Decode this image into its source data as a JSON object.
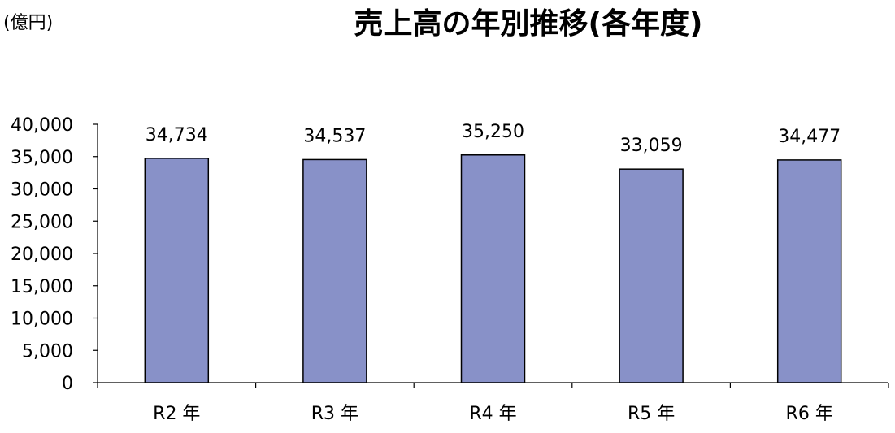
{
  "chart_data": {
    "type": "bar",
    "title": "売上高の年別推移(各年度)",
    "unit_label": "(億円)",
    "xlabel": "",
    "ylabel": "",
    "categories": [
      "R2 年",
      "R3 年",
      "R4 年",
      "R5 年",
      "R6 年"
    ],
    "values": [
      34734,
      34537,
      35250,
      33059,
      34477
    ],
    "value_labels": [
      "34,734",
      "34,537",
      "35,250",
      "33,059",
      "34,477"
    ],
    "ylim": [
      0,
      40000
    ],
    "y_ticks": [
      0,
      5000,
      10000,
      15000,
      20000,
      25000,
      30000,
      35000,
      40000
    ],
    "y_tick_labels": [
      "0",
      "5,000",
      "10,000",
      "15,000",
      "20,000",
      "25,000",
      "30,000",
      "35,000",
      "40,000"
    ],
    "grid": false,
    "legend": "none",
    "colors": {
      "bar_fill": "#8891c8",
      "bar_stroke": "#000000",
      "axis": "#000000"
    }
  }
}
